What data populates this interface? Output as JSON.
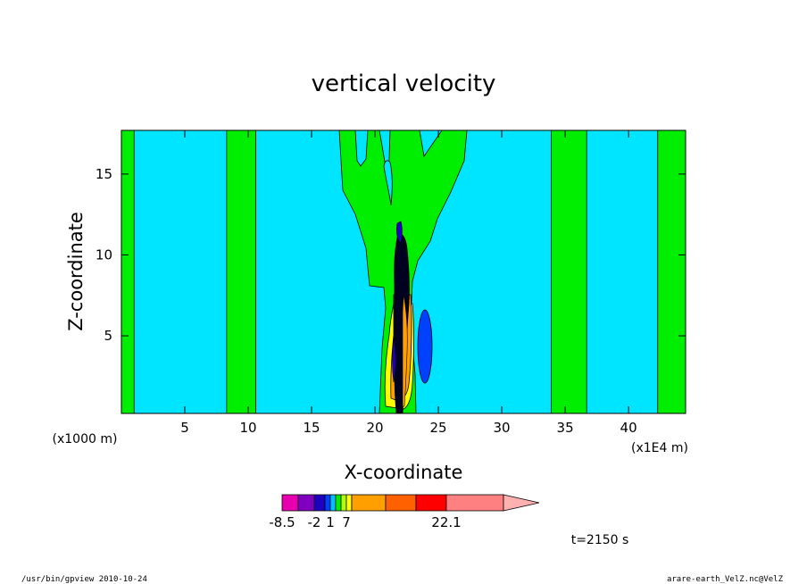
{
  "chart_data": {
    "type": "heatmap",
    "title": "vertical velocity",
    "xlabel": "X-coordinate",
    "ylabel": "Z-coordinate",
    "x_unit": "(x1E4 m)",
    "y_unit": "(x1000 m)",
    "xlim": [
      0,
      44.5
    ],
    "ylim": [
      0.2,
      17.7
    ],
    "x_ticks": [
      5,
      10,
      15,
      20,
      25,
      30,
      35,
      40
    ],
    "y_ticks": [
      5,
      10,
      15
    ],
    "x_tick_labels": [
      "5",
      "10",
      "15",
      "20",
      "25",
      "30",
      "35",
      "40"
    ],
    "y_tick_labels": [
      "5",
      "10",
      "15"
    ],
    "background_level_color": "#00e5ff",
    "bands": [
      {
        "x0": 0.0,
        "x1": 1.0,
        "color": "#00ee00"
      },
      {
        "x0": 8.3,
        "x1": 10.6,
        "color": "#00ee00"
      },
      {
        "x0": 33.9,
        "x1": 36.7,
        "color": "#00ee00"
      },
      {
        "x0": 42.3,
        "x1": 44.5,
        "color": "#00ee00"
      }
    ],
    "colorbar": {
      "colors": [
        "#e800b0",
        "#8000c0",
        "#2000c0",
        "#0040ff",
        "#00c0ff",
        "#00ee00",
        "#b0ff00",
        "#ffff00",
        "#ffa000",
        "#ff6000",
        "#ff0000",
        "#ff8080"
      ],
      "labels": [
        "-8.5",
        "-2",
        "1",
        "7",
        "22.1"
      ],
      "label_positions": [
        0,
        2,
        4,
        7,
        11
      ]
    },
    "time_label": "t=2150 s"
  },
  "footer": {
    "left": "/usr/bin/gpview   2010-10-24",
    "right": "arare-earth_VelZ.nc@VelZ"
  }
}
